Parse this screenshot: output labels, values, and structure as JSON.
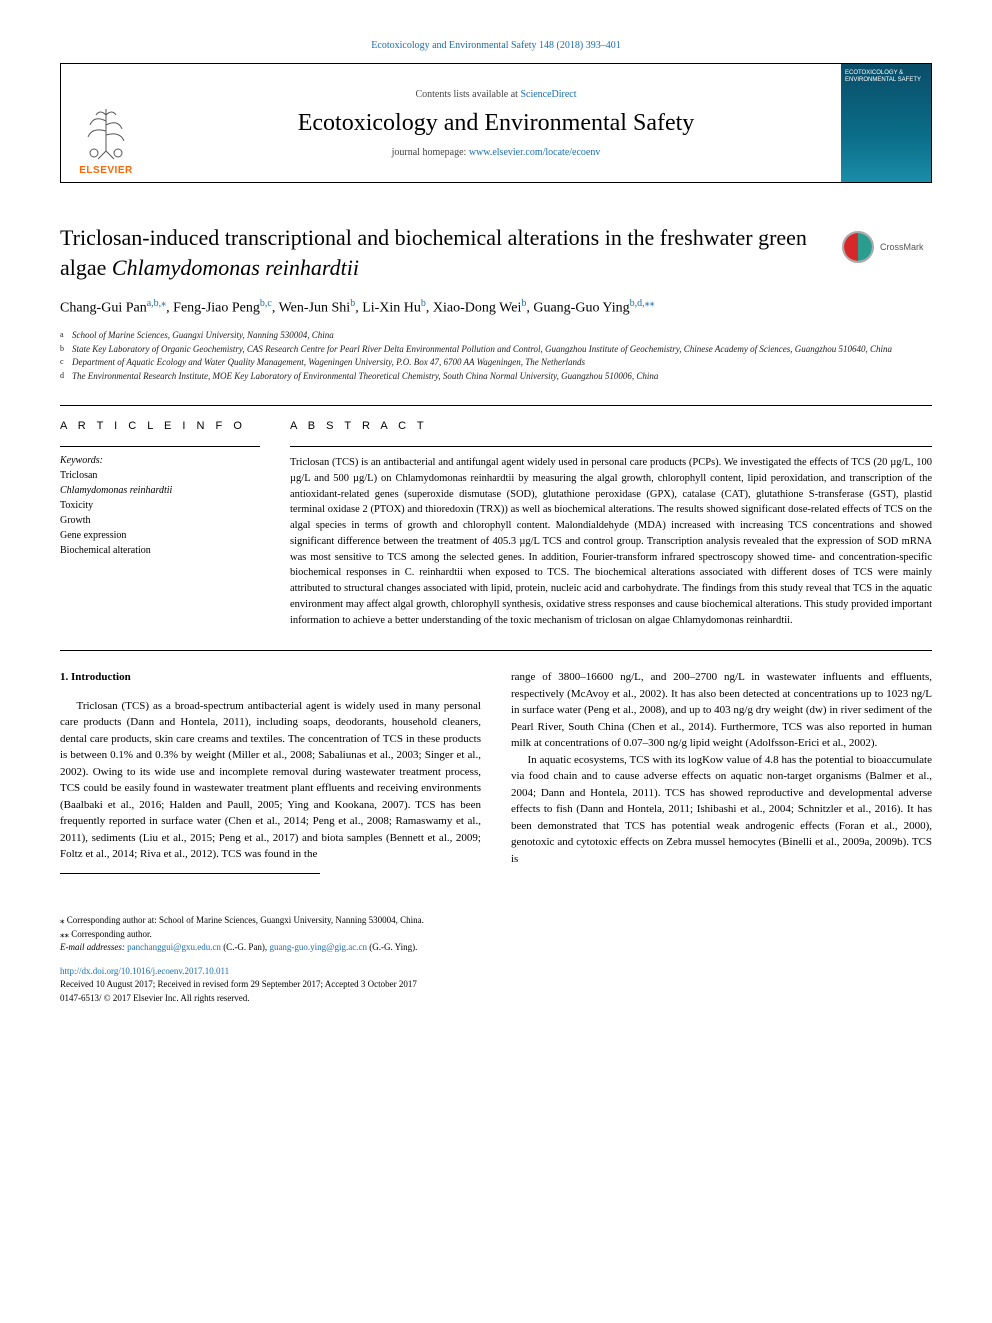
{
  "journal_ref": {
    "text": "Ecotoxicology and Environmental Safety 148 (2018) 393–401",
    "link_color": "#1a6db3"
  },
  "header": {
    "contents_prefix": "Contents lists available at ",
    "contents_link": "ScienceDirect",
    "journal_title": "Ecotoxicology and Environmental Safety",
    "homepage_prefix": "journal homepage: ",
    "homepage_link": "www.elsevier.com/locate/ecoenv",
    "elsevier_label": "ELSEVIER",
    "cover_text": "ECOTOXICOLOGY & ENVIRONMENTAL SAFETY"
  },
  "article": {
    "title_plain": "Triclosan-induced transcriptional and biochemical alterations in the freshwater green algae ",
    "title_italic": "Chlamydomonas reinhardtii",
    "crossmark_label": "CrossMark"
  },
  "authors": [
    {
      "name": "Chang-Gui Pan",
      "marks": "a,b,⁎"
    },
    {
      "name": "Feng-Jiao Peng",
      "marks": "b,c"
    },
    {
      "name": "Wen-Jun Shi",
      "marks": "b"
    },
    {
      "name": "Li-Xin Hu",
      "marks": "b"
    },
    {
      "name": "Xiao-Dong Wei",
      "marks": "b"
    },
    {
      "name": "Guang-Guo Ying",
      "marks": "b,d,⁎⁎"
    }
  ],
  "affiliations": [
    {
      "letter": "a",
      "text": "School of Marine Sciences, Guangxi University, Nanning 530004, China"
    },
    {
      "letter": "b",
      "text": "State Key Laboratory of Organic Geochemistry, CAS Research Centre for Pearl River Delta Environmental Pollution and Control, Guangzhou Institute of Geochemistry, Chinese Academy of Sciences, Guangzhou 510640, China"
    },
    {
      "letter": "c",
      "text": "Department of Aquatic Ecology and Water Quality Management, Wageningen University, P.O. Box 47, 6700 AA Wageningen, The Netherlands"
    },
    {
      "letter": "d",
      "text": "The Environmental Research Institute, MOE Key Laboratory of Environmental Theoretical Chemistry, South China Normal University, Guangzhou 510006, China"
    }
  ],
  "sections": {
    "article_info_label": "A R T I C L E  I N F O",
    "abstract_label": "A B S T R A C T",
    "keywords_label": "Keywords:",
    "keywords": [
      "Triclosan",
      "Chlamydomonas reinhardtii",
      "Toxicity",
      "Growth",
      "Gene expression",
      "Biochemical alteration"
    ],
    "keywords_italic_index": 1,
    "abstract": "Triclosan (TCS) is an antibacterial and antifungal agent widely used in personal care products (PCPs). We investigated the effects of TCS (20 µg/L, 100 µg/L and 500 µg/L) on Chlamydomonas reinhardtii by measuring the algal growth, chlorophyll content, lipid peroxidation, and transcription of the antioxidant-related genes (superoxide dismutase (SOD), glutathione peroxidase (GPX), catalase (CAT), glutathione S-transferase (GST), plastid terminal oxidase 2 (PTOX) and thioredoxin (TRX)) as well as biochemical alterations. The results showed significant dose-related effects of TCS on the algal species in terms of growth and chlorophyll content. Malondialdehyde (MDA) increased with increasing TCS concentrations and showed significant difference between the treatment of 405.3 µg/L TCS and control group. Transcription analysis revealed that the expression of SOD mRNA was most sensitive to TCS among the selected genes. In addition, Fourier-transform infrared spectroscopy showed time- and concentration-specific biochemical responses in C. reinhardtii when exposed to TCS. The biochemical alterations associated with different doses of TCS were mainly attributed to structural changes associated with lipid, protein, nucleic acid and carbohydrate. The findings from this study reveal that TCS in the aquatic environment may affect algal growth, chlorophyll synthesis, oxidative stress responses and cause biochemical alterations. This study provided important information to achieve a better understanding of the toxic mechanism of triclosan on algae Chlamydomonas reinhardtii."
  },
  "intro": {
    "heading": "1. Introduction",
    "col1": "Triclosan (TCS) as a broad-spectrum antibacterial agent is widely used in many personal care products (Dann and Hontela, 2011), including soaps, deodorants, household cleaners, dental care products, skin care creams and textiles. The concentration of TCS in these products is between 0.1% and 0.3% by weight (Miller et al., 2008; Sabaliunas et al., 2003; Singer et al., 2002). Owing to its wide use and incomplete removal during wastewater treatment process, TCS could be easily found in wastewater treatment plant effluents and receiving environments (Baalbaki et al., 2016; Halden and Paull, 2005; Ying and Kookana, 2007). TCS has been frequently reported in surface water (Chen et al., 2014; Peng et al., 2008; Ramaswamy et al., 2011), sediments (Liu et al., 2015; Peng et al., 2017) and biota samples (Bennett et al., 2009; Foltz et al., 2014; Riva et al., 2012). TCS was found in the",
    "col2": "range of 3800–16600 ng/L, and 200–2700 ng/L in wastewater influents and effluents, respectively (McAvoy et al., 2002). It has also been detected at concentrations up to 1023 ng/L in surface water (Peng et al., 2008), and up to 403 ng/g dry weight (dw) in river sediment of the Pearl River, South China (Chen et al., 2014). Furthermore, TCS was also reported in human milk at concentrations of 0.07–300 ng/g lipid weight (Adolfsson-Erici et al., 2002).",
    "col2_p2": "In aquatic ecosystems, TCS with its logKow value of 4.8 has the potential to bioaccumulate via food chain and to cause adverse effects on aquatic non-target organisms (Balmer et al., 2004; Dann and Hontela, 2011). TCS has showed reproductive and developmental adverse effects to fish (Dann and Hontela, 2011; Ishibashi et al., 2004; Schnitzler et al., 2016). It has been demonstrated that TCS has potential weak androgenic effects (Foran et al., 2000), genotoxic and cytotoxic effects on Zebra mussel hemocytes (Binelli et al., 2009a, 2009b). TCS is"
  },
  "footer": {
    "corr1": "⁎ Corresponding author at: School of Marine Sciences, Guangxi University, Nanning 530004, China.",
    "corr2": "⁎⁎ Corresponding author.",
    "email_label": "E-mail addresses: ",
    "email1": "panchanggui@gxu.edu.cn",
    "email1_name": " (C.-G. Pan), ",
    "email2": "guang-guo.ying@gig.ac.cn",
    "email2_name": " (G.-G. Ying).",
    "doi": "http://dx.doi.org/10.1016/j.ecoenv.2017.10.011",
    "received": "Received 10 August 2017; Received in revised form 29 September 2017; Accepted 3 October 2017",
    "issn": "0147-6513/ © 2017 Elsevier Inc. All rights reserved."
  },
  "colors": {
    "link": "#1a6db3",
    "elsevier_orange": "#ff6600",
    "cover_bg_top": "#0a4d68",
    "cover_bg_bottom": "#1a8da8",
    "crossmark_red": "#d62828",
    "crossmark_green": "#2a9d8f"
  }
}
